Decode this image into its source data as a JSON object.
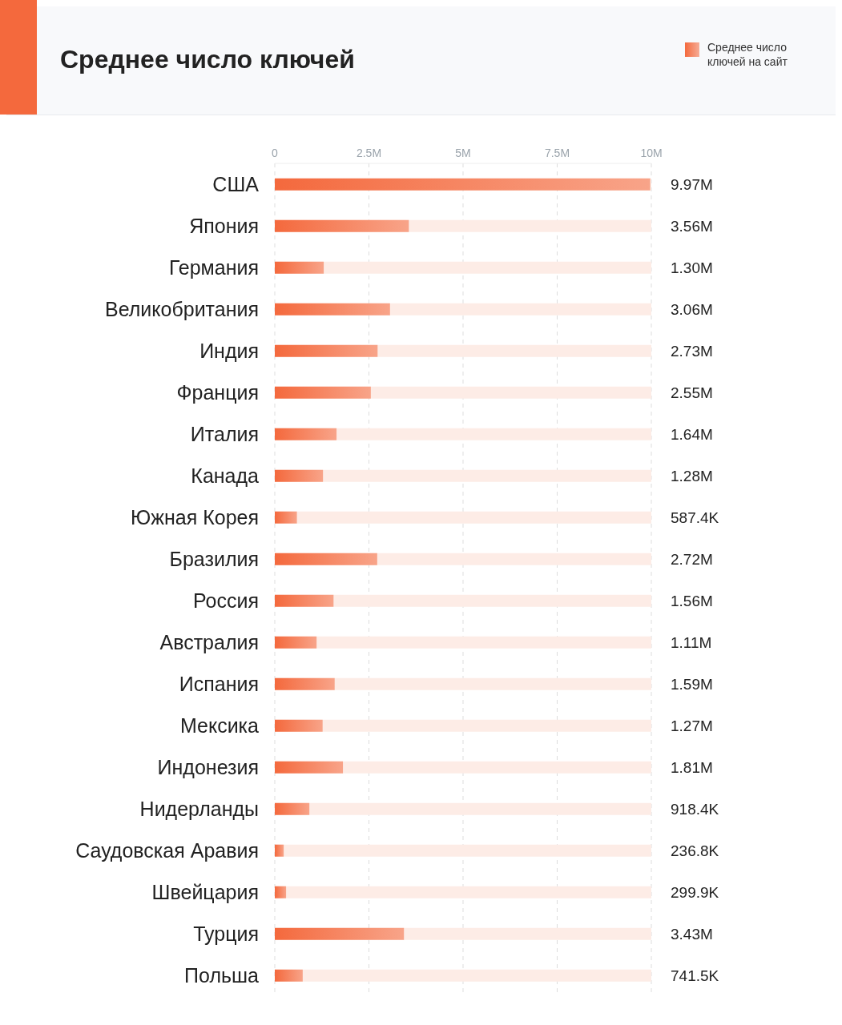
{
  "chart_data": {
    "type": "bar",
    "orientation": "horizontal",
    "title": "Среднее число ключей",
    "categories": [
      "США",
      "Япония",
      "Германия",
      "Великобритания",
      "Индия",
      "Франция",
      "Италия",
      "Канада",
      "Южная Корея",
      "Бразилия",
      "Россия",
      "Австралия",
      "Испания",
      "Мексика",
      "Индонезия",
      "Нидерланды",
      "Саудовская Аравия",
      "Швейцария",
      "Турция",
      "Польша"
    ],
    "series": [
      {
        "name": "Среднее число ключей на сайт",
        "color": "#f4693d",
        "values": [
          9970000,
          3560000,
          1300000,
          3060000,
          2730000,
          2550000,
          1640000,
          1280000,
          587400,
          2720000,
          1560000,
          1110000,
          1590000,
          1270000,
          1810000,
          918400,
          236800,
          299900,
          3430000,
          741500
        ],
        "value_labels": [
          "9.97M",
          "3.56M",
          "1.30M",
          "3.06M",
          "2.73M",
          "2.55M",
          "1.64M",
          "1.28M",
          "587.4K",
          "2.72M",
          "1.56M",
          "1.11M",
          "1.59M",
          "1.27M",
          "1.81M",
          "918.4K",
          "236.8K",
          "299.9K",
          "3.43M",
          "741.5K"
        ]
      }
    ],
    "xlim": [
      0,
      10000000
    ],
    "xticks": [
      {
        "value": 0,
        "label": "0"
      },
      {
        "value": 2500000,
        "label": "2.5M"
      },
      {
        "value": 5000000,
        "label": "5M"
      },
      {
        "value": 7500000,
        "label": "7.5M"
      },
      {
        "value": 10000000,
        "label": "10M"
      }
    ],
    "grid": "x",
    "legend": "top right"
  }
}
